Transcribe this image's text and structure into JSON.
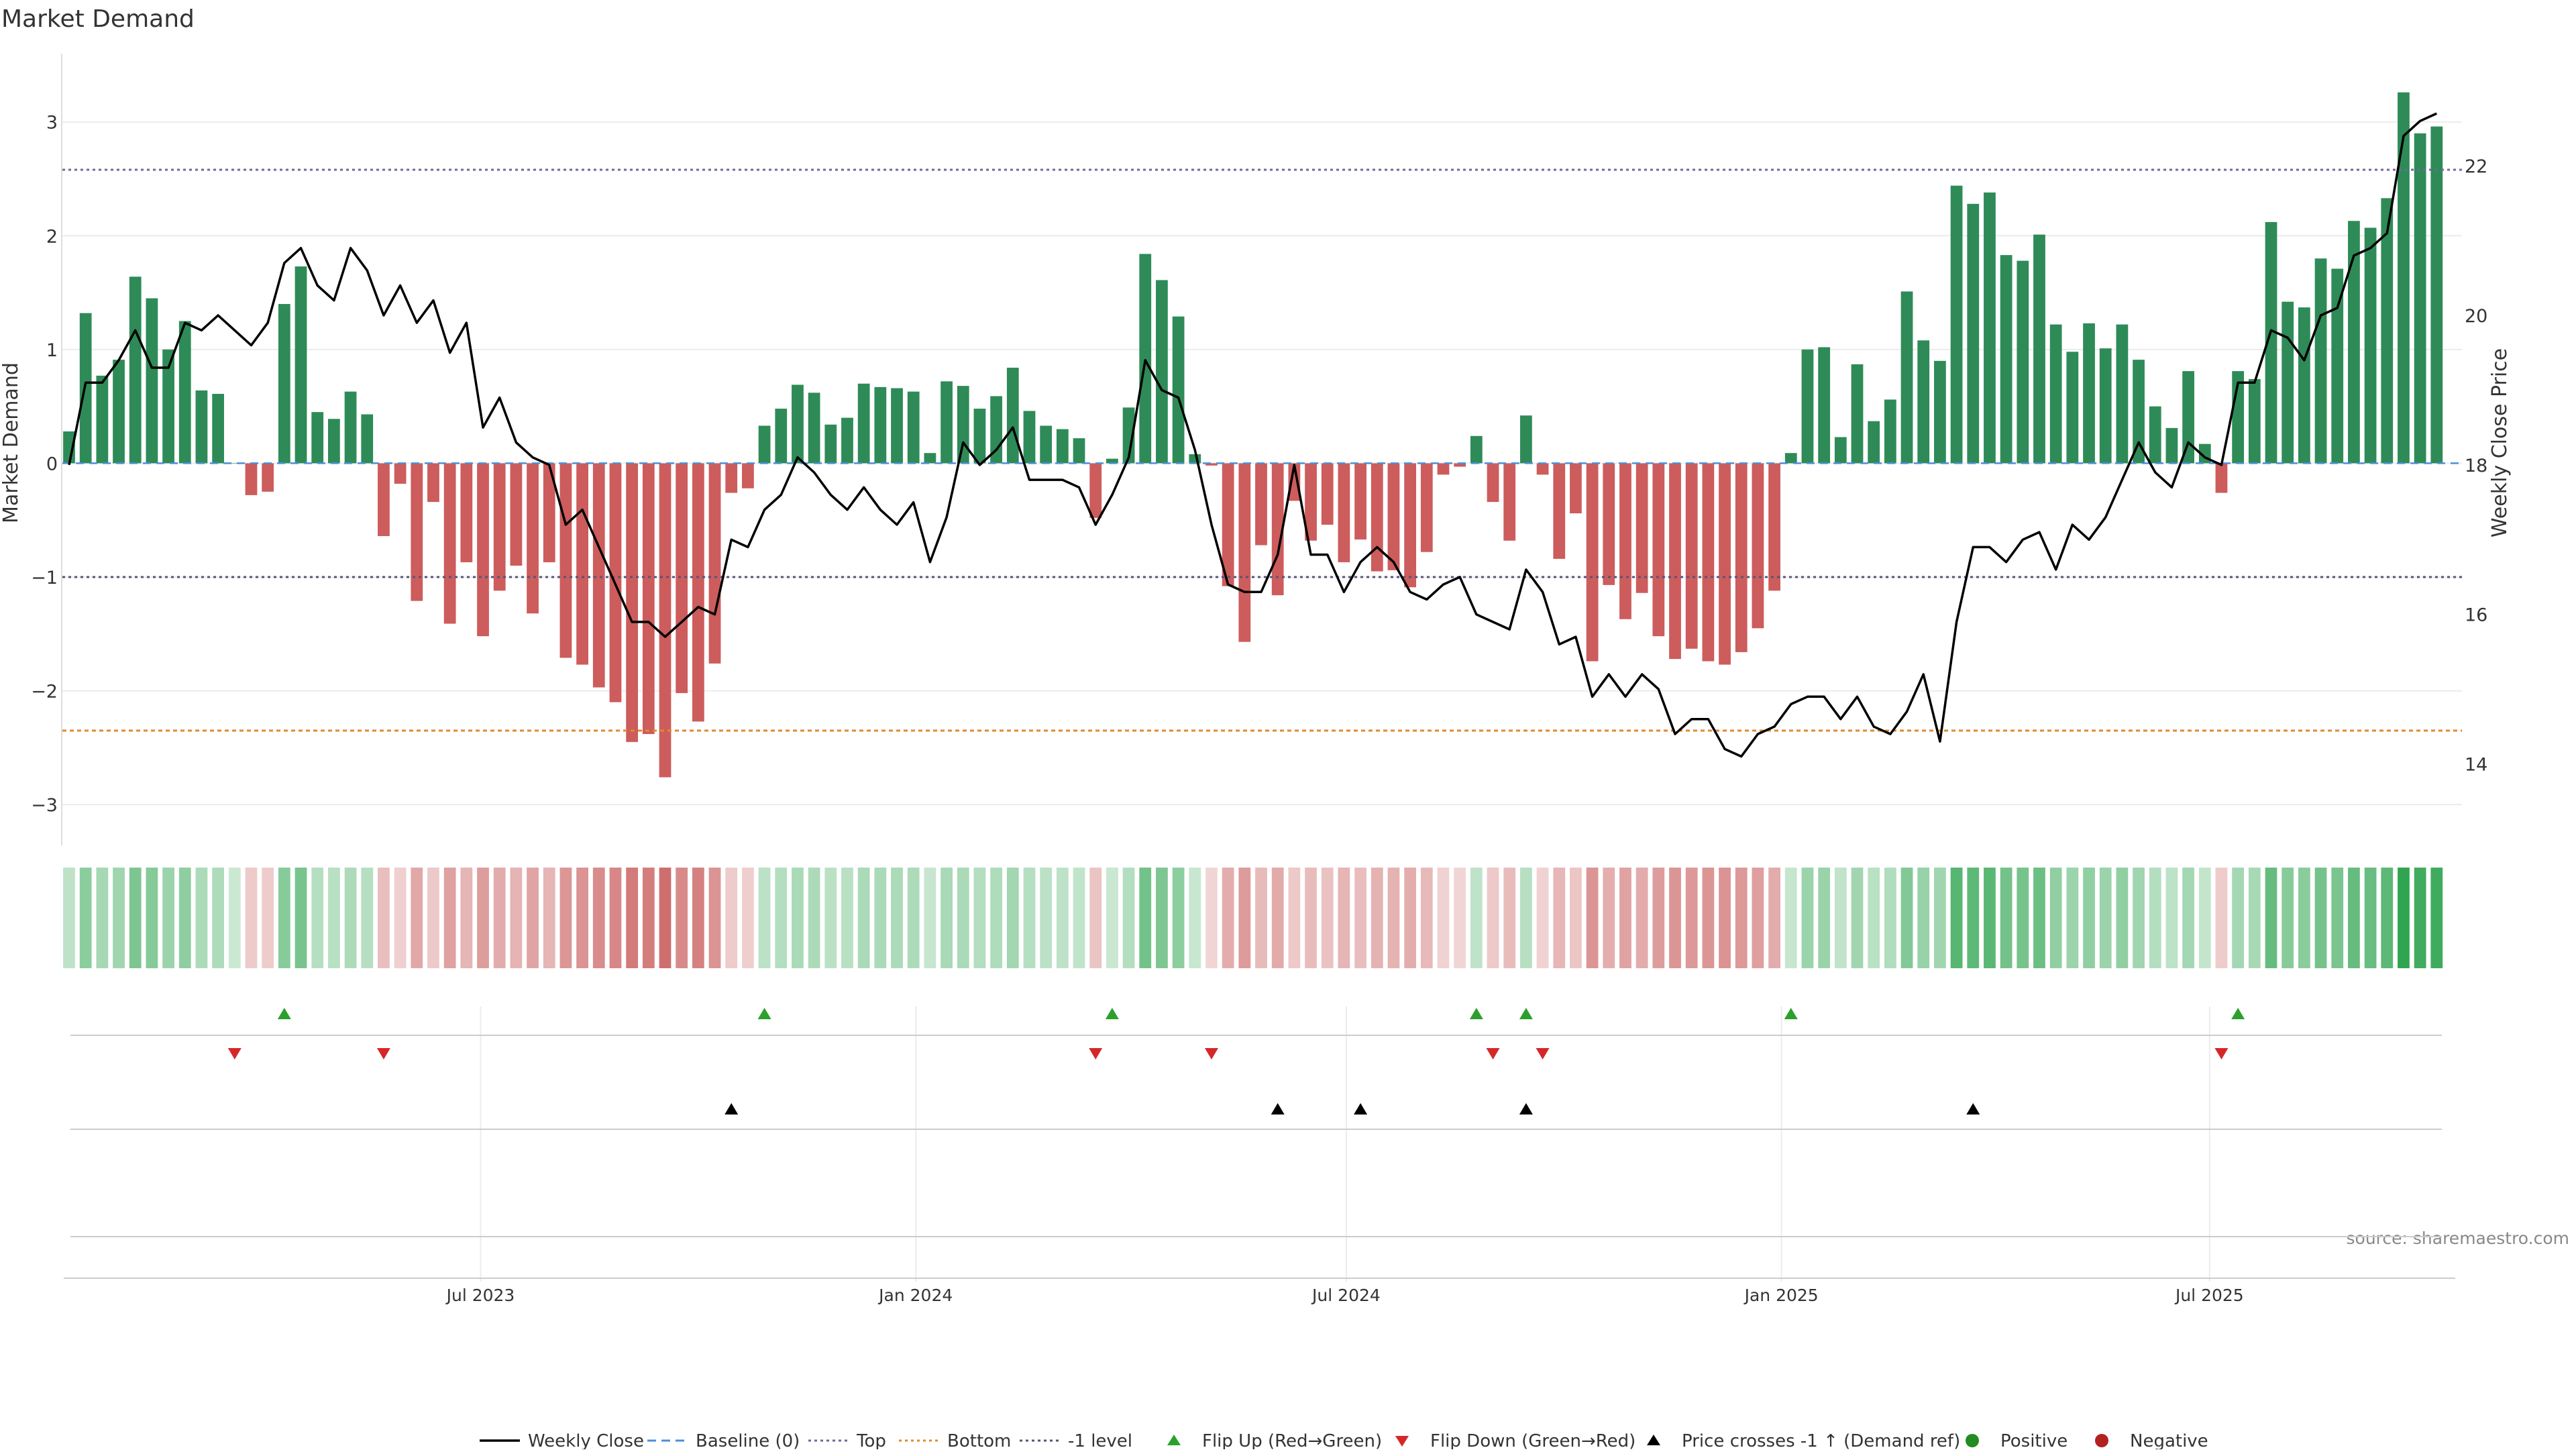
{
  "title": "Market Demand",
  "source_note": "source: sharemaestro.com",
  "colors": {
    "positive_bar": "#2e8b57",
    "negative_bar": "#cd5c5c",
    "price_line": "#000000",
    "top_line": "#6a6a9a",
    "bottom_line": "#e08a2e",
    "level_line": "#555577",
    "baseline": "#4a90d9",
    "flip_up": "#2ca02c",
    "flip_down": "#d62728",
    "cross_marker": "#000000",
    "positive_dot": "#228b22",
    "negative_dot": "#b22222"
  },
  "chart_data": {
    "type": "bar",
    "title": "Market Demand",
    "ylabel": "Market Demand",
    "y2label": "Weekly Close Price",
    "ylim": [
      -3.3,
      3.6
    ],
    "y2lim": [
      13.0,
      23.5
    ],
    "yticks": [
      3,
      2,
      1,
      0,
      -1,
      -2,
      -3
    ],
    "yticklabels": [
      "3",
      "2",
      "1",
      "0",
      "−1",
      "−2",
      "−3"
    ],
    "y2ticks": [
      22,
      20,
      18,
      16,
      14
    ],
    "y2ticklabels": [
      "22",
      "20",
      "18",
      "16",
      "14"
    ],
    "x_dates": [
      "2023-01-08",
      "2023-01-15",
      "2023-01-22",
      "2023-01-29",
      "2023-02-05",
      "2023-02-12",
      "2023-02-19",
      "2023-02-26",
      "2023-03-05",
      "2023-03-12",
      "2023-03-19",
      "2023-03-26",
      "2023-04-02",
      "2023-04-09",
      "2023-04-16",
      "2023-04-23",
      "2023-04-30",
      "2023-05-07",
      "2023-05-14",
      "2023-05-21",
      "2023-05-28",
      "2023-06-04",
      "2023-06-11",
      "2023-06-18",
      "2023-06-25",
      "2023-07-02",
      "2023-07-09",
      "2023-07-16",
      "2023-07-23",
      "2023-07-30",
      "2023-08-06",
      "2023-08-13",
      "2023-08-20",
      "2023-08-27",
      "2023-09-03",
      "2023-09-10",
      "2023-09-17",
      "2023-09-24",
      "2023-10-01",
      "2023-10-08",
      "2023-10-15",
      "2023-10-22",
      "2023-10-29",
      "2023-11-05",
      "2023-11-12",
      "2023-11-19",
      "2023-11-26",
      "2023-12-03",
      "2023-12-10",
      "2023-12-17",
      "2023-12-24",
      "2023-12-31",
      "2024-01-07",
      "2024-01-14",
      "2024-01-21",
      "2024-01-28",
      "2024-02-04",
      "2024-02-11",
      "2024-02-18",
      "2024-02-25",
      "2024-03-03",
      "2024-03-10",
      "2024-03-17",
      "2024-03-24",
      "2024-03-31",
      "2024-04-07",
      "2024-04-14",
      "2024-04-21",
      "2024-04-28",
      "2024-05-05",
      "2024-05-12",
      "2024-05-19",
      "2024-05-26",
      "2024-06-02",
      "2024-06-09",
      "2024-06-16",
      "2024-06-23",
      "2024-06-30",
      "2024-07-07",
      "2024-07-14",
      "2024-07-21",
      "2024-07-28",
      "2024-08-04",
      "2024-08-11",
      "2024-08-18",
      "2024-08-25",
      "2024-09-01",
      "2024-09-08",
      "2024-09-15",
      "2024-09-22",
      "2024-09-29",
      "2024-10-06",
      "2024-10-13",
      "2024-10-20",
      "2024-10-27",
      "2024-11-03",
      "2024-11-10",
      "2024-11-17",
      "2024-11-24",
      "2024-12-01",
      "2024-12-08",
      "2024-12-15",
      "2024-12-22",
      "2024-12-29",
      "2025-01-05",
      "2025-01-12",
      "2025-01-19",
      "2025-01-26",
      "2025-02-02",
      "2025-02-09",
      "2025-02-16",
      "2025-02-23",
      "2025-03-02",
      "2025-03-09",
      "2025-03-16",
      "2025-03-23",
      "2025-03-30",
      "2025-04-06",
      "2025-04-13",
      "2025-04-20",
      "2025-04-27",
      "2025-05-04",
      "2025-05-11",
      "2025-05-18",
      "2025-05-25",
      "2025-06-01",
      "2025-06-08",
      "2025-06-15",
      "2025-06-22",
      "2025-06-29",
      "2025-07-06",
      "2025-07-13",
      "2025-07-20",
      "2025-07-27",
      "2025-08-03",
      "2025-08-10",
      "2025-08-17",
      "2025-08-24",
      "2025-08-31",
      "2025-09-07",
      "2025-09-14",
      "2025-09-21",
      "2025-09-28",
      "2025-10-05",
      "2025-10-12"
    ],
    "demand": [
      0.28,
      1.32,
      0.77,
      0.91,
      1.64,
      1.45,
      1.0,
      1.25,
      0.64,
      0.61,
      0.0,
      -0.28,
      -0.25,
      1.4,
      1.73,
      0.45,
      0.39,
      0.63,
      0.43,
      -0.64,
      -0.18,
      -1.21,
      -0.34,
      -1.41,
      -0.87,
      -1.52,
      -1.12,
      -0.9,
      -1.32,
      -0.87,
      -1.71,
      -1.77,
      -1.97,
      -2.1,
      -2.45,
      -2.38,
      -2.76,
      -2.02,
      -2.27,
      -1.76,
      -0.26,
      -0.22,
      0.33,
      0.48,
      0.69,
      0.62,
      0.34,
      0.4,
      0.7,
      0.67,
      0.66,
      0.63,
      0.09,
      0.72,
      0.68,
      0.48,
      0.59,
      0.84,
      0.46,
      0.33,
      0.3,
      0.22,
      -0.48,
      0.04,
      0.49,
      1.84,
      1.61,
      1.29,
      0.08,
      -0.02,
      -1.08,
      -1.57,
      -0.72,
      -1.16,
      -0.33,
      -0.68,
      -0.54,
      -0.87,
      -0.67,
      -0.95,
      -0.94,
      -1.09,
      -0.78,
      -0.1,
      -0.03,
      0.24,
      -0.34,
      -0.68,
      0.42,
      -0.1,
      -0.84,
      -0.44,
      -1.74,
      -1.07,
      -1.37,
      -1.14,
      -1.52,
      -1.72,
      -1.63,
      -1.74,
      -1.77,
      -1.66,
      -1.45,
      -1.12,
      0.09,
      1.0,
      1.02,
      0.23,
      0.87,
      0.37,
      0.56,
      1.51,
      1.08,
      0.9,
      2.44,
      2.28,
      2.38,
      1.83,
      1.78,
      2.01,
      1.22,
      0.98,
      1.23,
      1.01,
      1.22,
      0.91,
      0.5,
      0.31,
      0.81,
      0.17,
      -0.26,
      0.81,
      0.74,
      2.12,
      1.42,
      1.37,
      1.8,
      1.71,
      2.13,
      2.07,
      2.33,
      3.26,
      2.9,
      2.96
    ],
    "weekly_close": [
      18.0,
      19.1,
      19.1,
      19.4,
      19.8,
      19.3,
      19.3,
      19.9,
      19.8,
      20.0,
      19.8,
      19.6,
      19.9,
      20.7,
      20.9,
      20.4,
      20.2,
      20.9,
      20.6,
      20.0,
      20.4,
      19.9,
      20.2,
      19.5,
      19.9,
      18.5,
      18.9,
      18.3,
      18.1,
      18.0,
      17.2,
      17.4,
      16.9,
      16.4,
      15.9,
      15.9,
      15.7,
      15.9,
      16.1,
      16.0,
      17.0,
      16.9,
      17.4,
      17.6,
      18.1,
      17.9,
      17.6,
      17.4,
      17.7,
      17.4,
      17.2,
      17.5,
      16.7,
      17.3,
      18.3,
      18.0,
      18.2,
      18.5,
      17.8,
      17.8,
      17.8,
      17.7,
      17.2,
      17.6,
      18.1,
      19.4,
      19.0,
      18.9,
      18.2,
      17.2,
      16.4,
      16.3,
      16.3,
      16.8,
      18.0,
      16.8,
      16.8,
      16.3,
      16.7,
      16.9,
      16.7,
      16.3,
      16.2,
      16.4,
      16.5,
      16.0,
      15.9,
      15.8,
      16.6,
      16.3,
      15.6,
      15.7,
      14.9,
      15.2,
      14.9,
      15.2,
      15.0,
      14.4,
      14.6,
      14.6,
      14.2,
      14.1,
      14.4,
      14.5,
      14.8,
      14.9,
      14.9,
      14.6,
      14.9,
      14.5,
      14.4,
      14.7,
      15.2,
      14.3,
      15.9,
      16.9,
      16.9,
      16.7,
      17.0,
      17.1,
      16.6,
      17.2,
      17.0,
      17.3,
      17.8,
      18.3,
      17.9,
      17.7,
      18.3,
      18.1,
      18.0,
      19.1,
      19.1,
      19.8,
      19.7,
      19.4,
      20.0,
      20.1,
      20.8,
      20.9,
      21.1,
      22.4,
      22.6,
      22.7
    ],
    "reference_lines": [
      {
        "name": "Top",
        "value": 2.58
      },
      {
        "name": "Bottom",
        "value": -2.35
      },
      {
        "name": "-1 level",
        "value": -1.0
      },
      {
        "name": "Baseline (0)",
        "value": 0.0
      }
    ],
    "flip_up_indices": [
      13,
      42,
      63,
      85,
      88,
      104,
      131
    ],
    "flip_down_indices": [
      10,
      19,
      62,
      69,
      86,
      89,
      130
    ],
    "price_cross_indices": [
      40,
      73,
      78,
      88,
      115
    ],
    "x_tick_dates": [
      "2023-07-01",
      "2024-01-01",
      "2024-07-01",
      "2025-01-01",
      "2025-07-01"
    ],
    "x_tick_labels": [
      "Jul 2023",
      "Jan 2024",
      "Jul 2024",
      "Jan 2025",
      "Jul 2025"
    ],
    "legend_position": "bottom-center",
    "legend": [
      {
        "label": "Weekly Close",
        "marker": "line"
      },
      {
        "label": "Baseline (0)",
        "marker": "dash"
      },
      {
        "label": "Top",
        "marker": "dot"
      },
      {
        "label": "Bottom",
        "marker": "dot"
      },
      {
        "label": "-1 level",
        "marker": "dot"
      },
      {
        "label": "Flip Up (Red→Green)",
        "marker": "tri-up"
      },
      {
        "label": "Flip Down (Green→Red)",
        "marker": "tri-down"
      },
      {
        "label": "Price crosses -1 ↑ (Demand ref)",
        "marker": "tri-up-black"
      },
      {
        "label": "Positive",
        "marker": "circle-green"
      },
      {
        "label": "Negative",
        "marker": "circle-red"
      }
    ]
  }
}
